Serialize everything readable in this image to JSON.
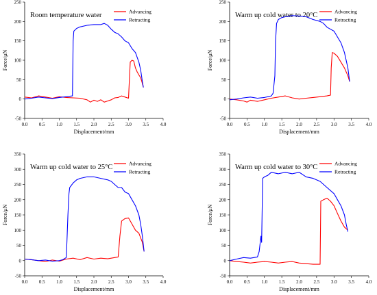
{
  "colors": {
    "advancing": "#ff0000",
    "retracting": "#0000ff",
    "axis": "#000000",
    "background": "#ffffff"
  },
  "chart_data": [
    {
      "type": "line",
      "title": "Room temperature water",
      "xlabel": "Displacement/mm",
      "ylabel": "Force/μN",
      "xlim": [
        0,
        4.0
      ],
      "ylim": [
        -50,
        250
      ],
      "xticks": [
        "0.0",
        "0.5",
        "1.0",
        "1.5",
        "2.0",
        "2.5",
        "3.0",
        "3.5",
        "4.0"
      ],
      "yticks": [
        "-50",
        "0",
        "50",
        "100",
        "150",
        "200",
        "250"
      ],
      "legend_position": "top-right",
      "series": [
        {
          "name": "Advancing",
          "color": "#ff0000",
          "x": [
            0.0,
            0.2,
            0.4,
            0.6,
            0.8,
            1.0,
            1.2,
            1.4,
            1.6,
            1.8,
            1.9,
            2.0,
            2.1,
            2.2,
            2.3,
            2.4,
            2.5,
            2.6,
            2.7,
            2.8,
            2.9,
            3.0,
            3.02,
            3.05,
            3.1,
            3.15,
            3.2,
            3.25,
            3.3,
            3.35,
            3.4,
            3.43
          ],
          "y": [
            5,
            3,
            8,
            5,
            2,
            6,
            4,
            3,
            2,
            -2,
            -8,
            -3,
            -6,
            -2,
            -8,
            -5,
            -2,
            3,
            4,
            8,
            5,
            2,
            40,
            95,
            100,
            98,
            80,
            70,
            62,
            55,
            40,
            30
          ]
        },
        {
          "name": "Retracting",
          "color": "#0000ff",
          "x": [
            0.0,
            0.2,
            0.4,
            0.6,
            0.8,
            1.0,
            1.2,
            1.38,
            1.4,
            1.42,
            1.5,
            1.6,
            1.8,
            2.0,
            2.2,
            2.3,
            2.4,
            2.5,
            2.6,
            2.7,
            2.8,
            2.9,
            3.0,
            3.1,
            3.2,
            3.3,
            3.35,
            3.4,
            3.43
          ],
          "y": [
            0,
            2,
            5,
            3,
            1,
            4,
            6,
            8,
            150,
            175,
            182,
            186,
            190,
            192,
            192,
            195,
            190,
            180,
            172,
            168,
            160,
            150,
            145,
            130,
            120,
            95,
            75,
            45,
            30
          ]
        }
      ]
    },
    {
      "type": "line",
      "title": "Warm up cold water to 20°C",
      "xlabel": "Displacement/mm",
      "ylabel": "Force/μN",
      "xlim": [
        0,
        4.0
      ],
      "ylim": [
        -50,
        250
      ],
      "xticks": [
        "0.0",
        "0.5",
        "1.0",
        "1.5",
        "2.0",
        "2.5",
        "3.0",
        "3.5",
        "4.0"
      ],
      "yticks": [
        "-50",
        "0",
        "50",
        "100",
        "150",
        "200",
        "250"
      ],
      "legend_position": "top-right",
      "series": [
        {
          "name": "Advancing",
          "color": "#ff0000",
          "x": [
            0.0,
            0.2,
            0.4,
            0.5,
            0.6,
            0.8,
            1.0,
            1.2,
            1.4,
            1.6,
            1.8,
            2.0,
            2.2,
            2.4,
            2.6,
            2.8,
            2.9,
            2.92,
            2.95,
            3.0,
            3.1,
            3.2,
            3.3,
            3.4,
            3.45
          ],
          "y": [
            0,
            -2,
            -5,
            -8,
            -3,
            -6,
            -2,
            2,
            5,
            8,
            3,
            0,
            2,
            4,
            6,
            8,
            10,
            80,
            120,
            118,
            110,
            95,
            80,
            60,
            45
          ]
        },
        {
          "name": "Retracting",
          "color": "#0000ff",
          "x": [
            0.0,
            0.2,
            0.4,
            0.6,
            0.8,
            1.0,
            1.1,
            1.2,
            1.25,
            1.3,
            1.32,
            1.35,
            1.4,
            1.5,
            1.6,
            1.8,
            2.0,
            2.2,
            2.4,
            2.6,
            2.7,
            2.8,
            2.9,
            3.0,
            3.1,
            3.2,
            3.3,
            3.35,
            3.4,
            3.45
          ],
          "y": [
            -2,
            0,
            3,
            5,
            2,
            4,
            6,
            8,
            15,
            60,
            150,
            195,
            205,
            210,
            212,
            215,
            214,
            212,
            205,
            200,
            195,
            185,
            180,
            175,
            160,
            145,
            120,
            100,
            80,
            45
          ]
        }
      ]
    },
    {
      "type": "line",
      "title": "Warm up cold water to 25°C",
      "xlabel": "Displacement/mm",
      "ylabel": "Force/μN",
      "xlim": [
        0,
        4.0
      ],
      "ylim": [
        -50,
        350
      ],
      "xticks": [
        "0.0",
        "0.5",
        "1.0",
        "1.5",
        "2.0",
        "2.5",
        "3.0",
        "3.5",
        "4.0"
      ],
      "yticks": [
        "-50",
        "0",
        "50",
        "100",
        "150",
        "200",
        "250",
        "300",
        "350"
      ],
      "legend_position": "top-right",
      "series": [
        {
          "name": "Advancing",
          "color": "#ff0000",
          "x": [
            0.0,
            0.2,
            0.4,
            0.6,
            0.8,
            1.0,
            1.2,
            1.4,
            1.6,
            1.8,
            2.0,
            2.2,
            2.4,
            2.6,
            2.7,
            2.75,
            2.8,
            2.9,
            3.0,
            3.1,
            3.2,
            3.3,
            3.4,
            3.45
          ],
          "y": [
            5,
            3,
            0,
            -3,
            2,
            -2,
            5,
            8,
            3,
            10,
            5,
            8,
            6,
            10,
            12,
            80,
            130,
            138,
            140,
            120,
            100,
            90,
            60,
            30
          ]
        },
        {
          "name": "Retracting",
          "color": "#0000ff",
          "x": [
            0.0,
            0.2,
            0.4,
            0.6,
            0.8,
            1.0,
            1.1,
            1.2,
            1.22,
            1.25,
            1.28,
            1.3,
            1.4,
            1.5,
            1.6,
            1.8,
            2.0,
            2.2,
            2.4,
            2.5,
            2.6,
            2.7,
            2.8,
            2.9,
            3.0,
            3.1,
            3.2,
            3.3,
            3.35,
            3.4,
            3.45
          ],
          "y": [
            5,
            3,
            0,
            2,
            -2,
            0,
            3,
            10,
            60,
            150,
            220,
            240,
            255,
            265,
            270,
            275,
            275,
            270,
            265,
            260,
            250,
            240,
            240,
            225,
            220,
            200,
            180,
            150,
            120,
            80,
            30
          ]
        }
      ]
    },
    {
      "type": "line",
      "title": "Warm up cold water to 30°C",
      "xlabel": "Displacement/mm",
      "ylabel": "Force/μN",
      "xlim": [
        0,
        4.0
      ],
      "ylim": [
        -50,
        350
      ],
      "xticks": [
        "0.0",
        "0.5",
        "1.0",
        "1.5",
        "2.0",
        "2.5",
        "3.0",
        "3.5",
        "4.0"
      ],
      "yticks": [
        "-50",
        "0",
        "50",
        "100",
        "150",
        "200",
        "250",
        "300",
        "350"
      ],
      "legend_position": "top-right",
      "series": [
        {
          "name": "Advancing",
          "color": "#ff0000",
          "x": [
            0.0,
            0.2,
            0.4,
            0.6,
            0.8,
            1.0,
            1.2,
            1.4,
            1.6,
            1.8,
            2.0,
            2.2,
            2.4,
            2.55,
            2.6,
            2.62,
            2.7,
            2.8,
            2.9,
            3.0,
            3.1,
            3.2,
            3.3,
            3.4
          ],
          "y": [
            0,
            -3,
            -5,
            -8,
            -5,
            -3,
            -5,
            -8,
            -5,
            -3,
            -8,
            -10,
            -12,
            -12,
            -12,
            195,
            200,
            205,
            195,
            180,
            155,
            130,
            110,
            100
          ]
        },
        {
          "name": "Retracting",
          "color": "#0000ff",
          "x": [
            0.0,
            0.2,
            0.4,
            0.6,
            0.8,
            0.85,
            0.9,
            0.92,
            0.95,
            1.0,
            1.1,
            1.2,
            1.4,
            1.6,
            1.8,
            2.0,
            2.2,
            2.4,
            2.6,
            2.8,
            3.0,
            3.1,
            3.2,
            3.3,
            3.35,
            3.4
          ],
          "y": [
            0,
            5,
            10,
            8,
            12,
            30,
            80,
            60,
            270,
            275,
            280,
            290,
            285,
            290,
            285,
            290,
            275,
            270,
            260,
            240,
            220,
            200,
            180,
            150,
            120,
            95
          ]
        }
      ]
    }
  ]
}
